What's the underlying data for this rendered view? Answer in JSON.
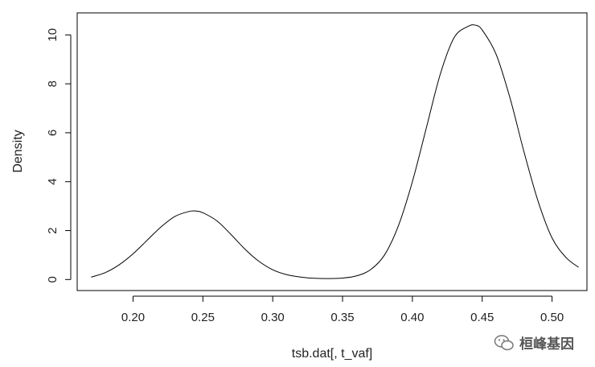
{
  "chart_data": {
    "type": "line",
    "title": "",
    "xlabel": "tsb.dat[, t_vaf]",
    "ylabel": "Density",
    "xlim": [
      0.16,
      0.525
    ],
    "ylim": [
      -0.45,
      10.9
    ],
    "x_ticks": [
      "0.20",
      "0.25",
      "0.30",
      "0.35",
      "0.40",
      "0.45",
      "0.50"
    ],
    "x_tick_values": [
      0.2,
      0.25,
      0.3,
      0.35,
      0.4,
      0.45,
      0.5
    ],
    "y_ticks": [
      "0",
      "2",
      "4",
      "6",
      "8",
      "10"
    ],
    "y_tick_values": [
      0,
      2,
      4,
      6,
      8,
      10
    ],
    "grid": false,
    "legend": "none",
    "line_color": "#000000",
    "series": [
      {
        "x": [
          0.17,
          0.18,
          0.19,
          0.2,
          0.21,
          0.22,
          0.23,
          0.24,
          0.245,
          0.25,
          0.26,
          0.27,
          0.28,
          0.29,
          0.3,
          0.31,
          0.32,
          0.33,
          0.34,
          0.35,
          0.36,
          0.37,
          0.38,
          0.39,
          0.4,
          0.41,
          0.42,
          0.43,
          0.44,
          0.445,
          0.45,
          0.46,
          0.47,
          0.48,
          0.49,
          0.5,
          0.51,
          0.519
        ],
        "y": [
          0.1,
          0.28,
          0.6,
          1.05,
          1.6,
          2.15,
          2.58,
          2.78,
          2.8,
          2.73,
          2.4,
          1.85,
          1.25,
          0.75,
          0.4,
          0.2,
          0.1,
          0.05,
          0.04,
          0.06,
          0.15,
          0.4,
          1.0,
          2.2,
          4.0,
          6.2,
          8.4,
          9.9,
          10.35,
          10.4,
          10.2,
          9.2,
          7.4,
          5.2,
          3.2,
          1.7,
          0.9,
          0.5
        ]
      }
    ]
  },
  "watermark": {
    "text": "桓峰基因",
    "icon": "wechat-icon"
  }
}
